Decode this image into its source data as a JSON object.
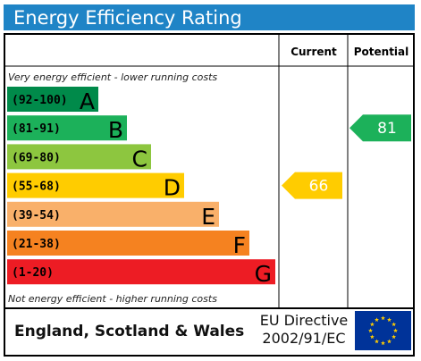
{
  "title": "Energy Efficiency Rating",
  "headers": {
    "current": "Current",
    "potential": "Potential"
  },
  "captions": {
    "top": "Very energy efficient - lower running costs",
    "bottom": "Not energy efficient - higher running costs"
  },
  "footer": {
    "country": "England, Scotland & Wales",
    "directive_line1": "EU Directive",
    "directive_line2": "2002/91/EC"
  },
  "chart_data": {
    "type": "bar",
    "title": "Energy Efficiency Rating",
    "bands": [
      {
        "letter": "A",
        "range": "(92-100)",
        "color": "#008a4a"
      },
      {
        "letter": "B",
        "range": "(81-91)",
        "color": "#1cb15a"
      },
      {
        "letter": "C",
        "range": "(69-80)",
        "color": "#8dc63f"
      },
      {
        "letter": "D",
        "range": "(55-68)",
        "color": "#ffcc00"
      },
      {
        "letter": "E",
        "range": "(39-54)",
        "color": "#f9b06a"
      },
      {
        "letter": "F",
        "range": "(21-38)",
        "color": "#f58220"
      },
      {
        "letter": "G",
        "range": "(1-20)",
        "color": "#ed1c24"
      }
    ],
    "current": {
      "value": 66,
      "band": "D",
      "color": "#ffcc00"
    },
    "potential": {
      "value": 81,
      "band": "B",
      "color": "#1cb15a"
    }
  },
  "colors": {
    "title_bar": "#1f84c6",
    "eu_flag_blue": "#003399",
    "eu_star": "#ffcc00"
  },
  "icons": {
    "eu_flag": "eu-flag-icon"
  }
}
